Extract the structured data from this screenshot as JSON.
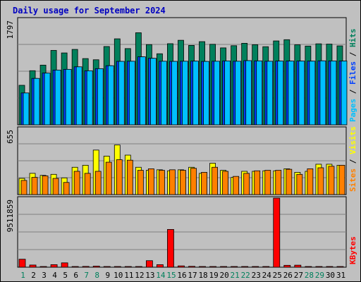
{
  "chart_data": {
    "type": "bar",
    "title": "Daily usage for September 2024",
    "categories": [
      "1",
      "2",
      "3",
      "4",
      "5",
      "6",
      "7",
      "8",
      "9",
      "10",
      "11",
      "12",
      "13",
      "14",
      "15",
      "16",
      "17",
      "18",
      "19",
      "20",
      "21",
      "22",
      "23",
      "24",
      "25",
      "26",
      "27",
      "28",
      "29",
      "30",
      "31"
    ],
    "weekend_days": [
      "1",
      "7",
      "8",
      "14",
      "15",
      "21",
      "22",
      "28",
      "29"
    ],
    "panels": [
      {
        "name": "hits-files-pages",
        "ymax_label": "1797",
        "ylim": [
          0,
          1797
        ],
        "right_label_parts": [
          "Pages",
          "Files",
          "Hits"
        ],
        "right_label_colors": [
          "#00c0ff",
          "#0040ff",
          "#00805c"
        ],
        "series": [
          {
            "name": "Hits",
            "color": "#00805c",
            "values": [
              671,
              919,
              1014,
              1264,
              1221,
              1281,
              1125,
              1105,
              1330,
              1461,
              1295,
              1564,
              1363,
              1207,
              1378,
              1436,
              1349,
              1413,
              1368,
              1307,
              1344,
              1385,
              1361,
              1327,
              1425,
              1446,
              1359,
              1338,
              1376,
              1371,
              1341
            ]
          },
          {
            "name": "Files",
            "color": "#0040ff",
            "values": [
              541,
              788,
              879,
              930,
              942,
              985,
              918,
              954,
              1004,
              1078,
              1080,
              1155,
              1130,
              1080,
              1078,
              1080,
              1082,
              1077,
              1080,
              1085,
              1080,
              1090,
              1086,
              1080,
              1083,
              1083,
              1083,
              1082,
              1087,
              1085,
              1084
            ]
          },
          {
            "name": "Pages",
            "color": "#00c0ff",
            "values": [
              541,
              788,
              879,
              930,
              942,
              985,
              918,
              954,
              1004,
              1078,
              1080,
              1155,
              1130,
              1080,
              1078,
              1080,
              1082,
              1077,
              1080,
              1085,
              1080,
              1090,
              1086,
              1080,
              1083,
              1083,
              1083,
              1082,
              1087,
              1085,
              1084
            ]
          }
        ]
      },
      {
        "name": "visits-sites",
        "ymax_label": "655",
        "ylim": [
          0,
          655
        ],
        "right_label_parts": [
          "Sites",
          "Visits"
        ],
        "right_label_colors": [
          "#ff8000",
          "#ffff00"
        ],
        "series": [
          {
            "name": "Visits",
            "color": "#ffff00",
            "values": [
              160,
              210,
              190,
              200,
              165,
              270,
              290,
              440,
              380,
              490,
              390,
              270,
              240,
              245,
              235,
              245,
              270,
              210,
              310,
              240,
              170,
              230,
              230,
              235,
              235,
              255,
              220,
              230,
              300,
              300,
              290
            ]
          },
          {
            "name": "Sites",
            "color": "#ff8000",
            "values": [
              140,
              170,
              185,
              160,
              120,
              230,
              210,
              230,
              320,
              345,
              340,
              240,
              255,
              240,
              245,
              240,
              260,
              220,
              270,
              230,
              180,
              210,
              235,
              240,
              240,
              250,
              200,
              255,
              265,
              280,
              290
            ]
          }
        ]
      },
      {
        "name": "kbytes",
        "ymax_label": "9511859",
        "ylim": [
          0,
          9511859
        ],
        "right_label_parts": [
          "KBytes"
        ],
        "right_label_colors": [
          "#ff0000"
        ],
        "series": [
          {
            "name": "KBytes",
            "color": "#ff0000",
            "values": [
              1100000,
              300000,
              80000,
              350000,
              600000,
              50000,
              110000,
              150000,
              55000,
              55000,
              50000,
              50000,
              900000,
              350000,
              5200000,
              180000,
              120000,
              75000,
              75000,
              60000,
              40000,
              80000,
              80000,
              60000,
              9511859,
              260000,
              280000,
              80000,
              90000,
              90000,
              90000
            ]
          }
        ]
      }
    ],
    "grid": true
  }
}
